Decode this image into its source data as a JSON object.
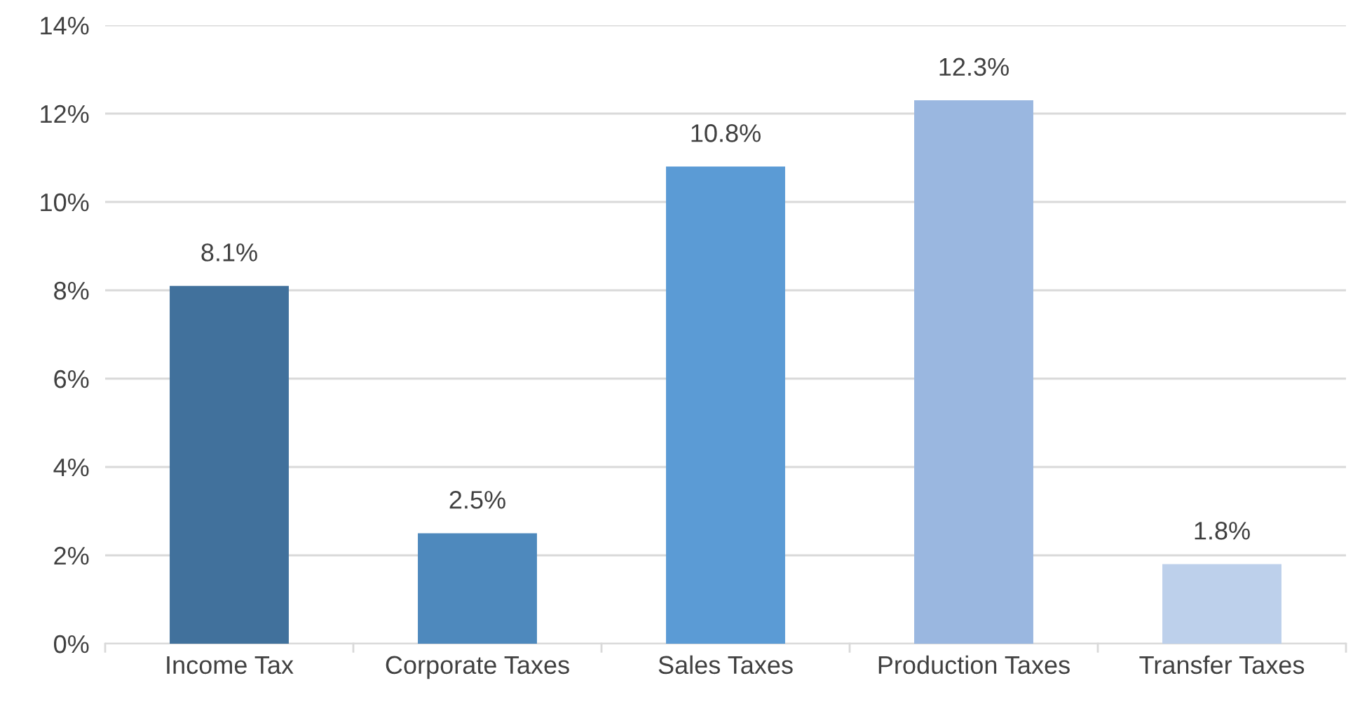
{
  "chart_data": {
    "type": "bar",
    "categories": [
      "Income Tax",
      "Corporate Taxes",
      "Sales Taxes",
      "Production Taxes",
      "Transfer Taxes"
    ],
    "values": [
      8.1,
      2.5,
      10.8,
      12.3,
      1.8
    ],
    "colors": [
      "#41719c",
      "#4e89bd",
      "#5b9bd5",
      "#9ab7e0",
      "#bdd0eb"
    ],
    "value_labels": [
      "8.1%",
      "2.5%",
      "10.8%",
      "12.3%",
      "1.8%"
    ],
    "ylim": [
      0,
      14
    ],
    "yticks": [
      {
        "value": 0,
        "label": "0%"
      },
      {
        "value": 2,
        "label": "2%"
      },
      {
        "value": 4,
        "label": "4%"
      },
      {
        "value": 6,
        "label": "6%"
      },
      {
        "value": 8,
        "label": "8%"
      },
      {
        "value": 10,
        "label": "10%"
      },
      {
        "value": 12,
        "label": "12%"
      },
      {
        "value": 14,
        "label": "14%"
      }
    ],
    "grid": "y"
  }
}
